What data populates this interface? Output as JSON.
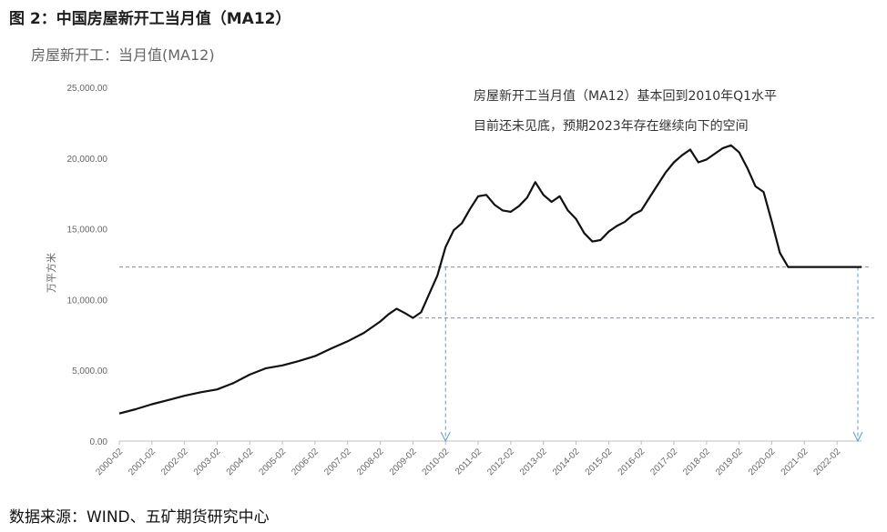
{
  "figure_title": "图 2：中国房屋新开工当月值（MA12）",
  "source": "数据来源：WIND、五矿期货研究中心",
  "chart_data": {
    "type": "line",
    "title": "房屋新开工：当月值(MA12)",
    "xlabel": "",
    "ylabel": "万平方米",
    "ylim": [
      0,
      25000
    ],
    "y_ticks": [
      "0.00",
      "5,000.00",
      "10,000.00",
      "15,000.00",
      "20,000.00",
      "25,000.00"
    ],
    "y_tick_values": [
      0,
      5000,
      10000,
      15000,
      20000,
      25000
    ],
    "x_ticks": [
      "2000-02",
      "2001-02",
      "2002-02",
      "2003-02",
      "2004-02",
      "2005-02",
      "2006-02",
      "2007-02",
      "2008-02",
      "2009-02",
      "2010-02",
      "2011-02",
      "2012-02",
      "2013-02",
      "2014-02",
      "2015-02",
      "2016-02",
      "2017-02",
      "2018-02",
      "2019-02",
      "2020-02",
      "2021-02",
      "2022-02"
    ],
    "grid": false,
    "legend": "none",
    "annotations": [
      "房屋新开工当月值（MA12）基本回到2010年Q1水平",
      "目前还未见底，预期2023年存在继续向下的空间"
    ],
    "reference_lines": [
      12300,
      8700
    ],
    "line_color": "#111111",
    "reference_color": "#5b9bd5",
    "series": [
      {
        "x": [
          "2000-02",
          "2000-08",
          "2001-02",
          "2001-08",
          "2002-02",
          "2002-08",
          "2003-02",
          "2003-08",
          "2004-02",
          "2004-08",
          "2005-02",
          "2005-08",
          "2006-02",
          "2006-08",
          "2007-02",
          "2007-08",
          "2008-02",
          "2008-05",
          "2008-08",
          "2008-11",
          "2009-02",
          "2009-05",
          "2009-08",
          "2009-11",
          "2010-02",
          "2010-05",
          "2010-08",
          "2010-11",
          "2011-02",
          "2011-05",
          "2011-08",
          "2011-11",
          "2012-02",
          "2012-05",
          "2012-08",
          "2012-11",
          "2013-02",
          "2013-05",
          "2013-08",
          "2013-11",
          "2014-02",
          "2014-05",
          "2014-08",
          "2014-11",
          "2015-02",
          "2015-05",
          "2015-08",
          "2015-11",
          "2016-02",
          "2016-05",
          "2016-08",
          "2016-11",
          "2017-02",
          "2017-05",
          "2017-08",
          "2017-11",
          "2018-02",
          "2018-05",
          "2018-08",
          "2018-11",
          "2019-02",
          "2019-05",
          "2019-08",
          "2019-11",
          "2020-02",
          "2020-05",
          "2020-08",
          "2020-11",
          "2021-02",
          "2021-05",
          "2021-08",
          "2021-11",
          "2022-02",
          "2022-05",
          "2022-08",
          "2022-11"
        ],
        "values": [
          1950,
          2250,
          2600,
          2900,
          3200,
          3450,
          3650,
          4100,
          4700,
          5150,
          5350,
          5650,
          6000,
          6550,
          7050,
          7650,
          8450,
          8950,
          9350,
          9050,
          8700,
          9100,
          10400,
          11700,
          13700,
          14900,
          15400,
          16400,
          17300,
          17400,
          16700,
          16300,
          16200,
          16600,
          17200,
          18300,
          17400,
          16900,
          17300,
          16300,
          15700,
          14700,
          14100,
          14200,
          14800,
          15200,
          15500,
          16000,
          16300,
          17200,
          18100,
          19000,
          19700,
          20200,
          20600,
          19700,
          19900,
          20300,
          20700,
          20900,
          20400,
          19300,
          18000,
          17600,
          15500,
          13300,
          12300,
          12300,
          12300,
          12300,
          12300,
          12300,
          12300,
          12300,
          12300,
          12300
        ]
      }
    ]
  }
}
